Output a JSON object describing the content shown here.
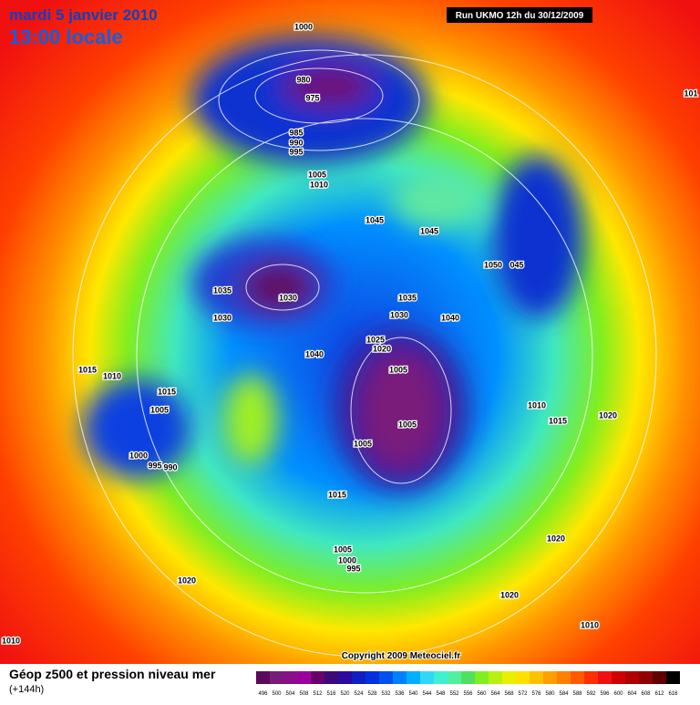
{
  "header": {
    "date": "mardi 5 janvier 2010",
    "time": "13:00 locale",
    "run": "Run UKMO 12h du 30/12/2009"
  },
  "copyright": "Copyright 2009 Meteociel.fr",
  "footer": {
    "title": "Géop z500 et pression niveau mer",
    "lead": "(+144h)"
  },
  "isobar_labels": [
    "1000",
    "980",
    "975",
    "985",
    "990",
    "995",
    "1005",
    "1010",
    "1045",
    "1045",
    "1050",
    "045",
    "1035",
    "1030",
    "1030",
    "1035",
    "1030",
    "1040",
    "1040",
    "1025",
    "1020",
    "1005",
    "1015",
    "1010",
    "1015",
    "1005",
    "1010",
    "1015",
    "1020",
    "1005",
    "1005",
    "1000",
    "995",
    "990",
    "1015",
    "1005",
    "1000",
    "995",
    "1020",
    "1020",
    "1020",
    "1010",
    "1010",
    "101"
  ],
  "scale": {
    "ticks": [
      496,
      500,
      504,
      508,
      512,
      516,
      520,
      524,
      528,
      532,
      536,
      540,
      544,
      548,
      552,
      556,
      560,
      564,
      568,
      572,
      576,
      580,
      584,
      588,
      592,
      596,
      600,
      604,
      608,
      612,
      616
    ],
    "colors": [
      "#5a0a5a",
      "#7a1a7a",
      "#8a108a",
      "#9a00a0",
      "#6a006a",
      "#3c0a78",
      "#2a0aa0",
      "#1020c0",
      "#0030e0",
      "#0050f0",
      "#0080ff",
      "#00b0ff",
      "#30d8f8",
      "#40f0d0",
      "#50f0a0",
      "#50e060",
      "#80ee20",
      "#b8f010",
      "#e8f000",
      "#ffe000",
      "#ffc000",
      "#ffa000",
      "#ff8000",
      "#ff5a00",
      "#ff3000",
      "#f01010",
      "#d00000",
      "#b00000",
      "#900000",
      "#600000",
      "#000000"
    ]
  }
}
